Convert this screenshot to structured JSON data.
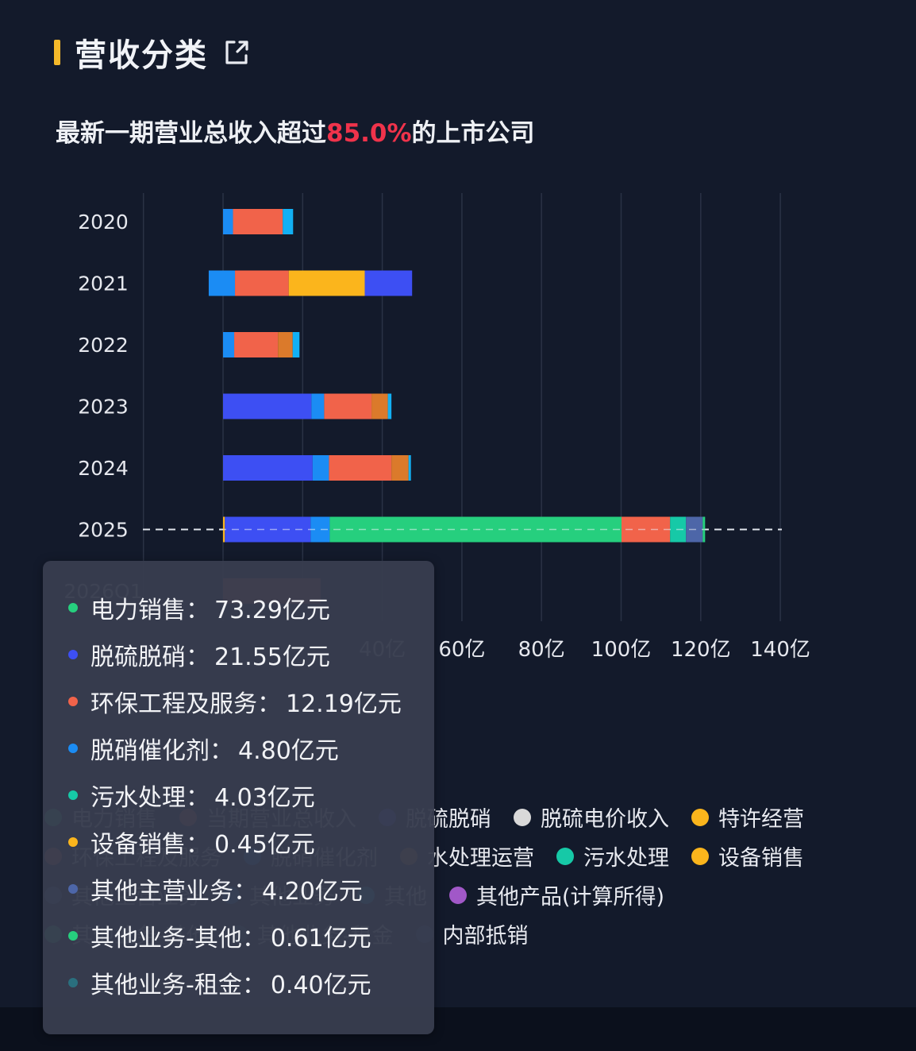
{
  "header": {
    "title": "营收分类",
    "icon": "external-link-icon",
    "accent": "#f5b92a"
  },
  "subtitle": {
    "prefix": "最新一期营业总收入超过",
    "highlight": "85.0%",
    "suffix": "的上市公司",
    "highlight_color": "#f0334b"
  },
  "chart_data": {
    "type": "bar",
    "orientation": "horizontal",
    "stacked": true,
    "categories": [
      "2020",
      "2021",
      "2022",
      "2023",
      "2024",
      "2025",
      "2026Q1"
    ],
    "x_ticks": [
      "40亿",
      "60亿",
      "80亿",
      "100亿",
      "120亿",
      "140亿"
    ],
    "xlim": [
      -20,
      140
    ],
    "x_unit": "亿",
    "highlighted_category": "2025",
    "segment_colors": {
      "blue": "#3d4ff3",
      "lightblue": "#1b8cf4",
      "cyan": "#12b0f4",
      "red": "#f1634a",
      "yellow": "#fbb51c",
      "orange": "#db7a2b",
      "green": "#26cf7e",
      "teal": "#16c9a7",
      "slate": "#4d66a8"
    },
    "bars": [
      {
        "category": "2020",
        "segments": [
          [
            0,
            2.5,
            "lightblue"
          ],
          [
            2.5,
            15,
            "red"
          ],
          [
            15,
            17.6,
            "cyan"
          ]
        ]
      },
      {
        "category": "2021",
        "segments": [
          [
            -3.6,
            3,
            "lightblue"
          ],
          [
            3,
            16.5,
            "red"
          ],
          [
            16.5,
            35.6,
            "yellow"
          ],
          [
            35.6,
            47.5,
            "blue"
          ]
        ]
      },
      {
        "category": "2022",
        "segments": [
          [
            0,
            2.8,
            "lightblue"
          ],
          [
            2.8,
            13.8,
            "red"
          ],
          [
            13.8,
            17.5,
            "orange"
          ],
          [
            17.5,
            19.2,
            "cyan"
          ]
        ]
      },
      {
        "category": "2023",
        "segments": [
          [
            0,
            22.2,
            "blue"
          ],
          [
            22.2,
            25.4,
            "lightblue"
          ],
          [
            25.4,
            37.3,
            "red"
          ],
          [
            37.3,
            41.4,
            "orange"
          ],
          [
            41.4,
            42.3,
            "cyan"
          ]
        ]
      },
      {
        "category": "2024",
        "segments": [
          [
            0,
            22.5,
            "blue"
          ],
          [
            22.5,
            26.6,
            "lightblue"
          ],
          [
            26.6,
            42.3,
            "red"
          ],
          [
            42.3,
            46.6,
            "orange"
          ],
          [
            46.6,
            47.2,
            "cyan"
          ]
        ]
      },
      {
        "category": "2025",
        "segments": [
          [
            0,
            0.45,
            "yellow"
          ],
          [
            0.45,
            22,
            "blue"
          ],
          [
            22,
            26.8,
            "lightblue"
          ],
          [
            26.8,
            100.1,
            "green"
          ],
          [
            100.1,
            112.3,
            "red"
          ],
          [
            112.3,
            116.3,
            "teal"
          ],
          [
            116.3,
            120.5,
            "slate"
          ],
          [
            120.5,
            121.1,
            "green"
          ]
        ]
      },
      {
        "category": "2026Q1",
        "segments": [
          [
            0,
            24.5,
            "red"
          ]
        ]
      }
    ],
    "legend": [
      {
        "label": "电力销售",
        "color": "#26cf7e"
      },
      {
        "label": "当期营业总收入",
        "color": "#f1634a"
      },
      {
        "label": "脱硫脱硝",
        "color": "#3d4ff3"
      },
      {
        "label": "脱硫电价收入",
        "color": "#d9d9d9"
      },
      {
        "label": "特许经营",
        "color": "#fbb51c"
      },
      {
        "label": "环保工程及服务",
        "color": "#f1634a"
      },
      {
        "label": "脱硝催化剂",
        "color": "#1b8cf4"
      },
      {
        "label": "水处理运营",
        "color": "#db7a2b"
      },
      {
        "label": "污水处理",
        "color": "#16c9a7"
      },
      {
        "label": "设备销售",
        "color": "#fbb51c"
      },
      {
        "label": "其他主营业务",
        "color": "#4d66a8"
      },
      {
        "label": "其他业务",
        "color": "#1b8cf4"
      },
      {
        "label": "其他",
        "color": "#12b0f4"
      },
      {
        "label": "其他产品(计算所得)",
        "color": "#a158c8"
      },
      {
        "label": "其他业务-其他",
        "color": "#26cf7e"
      },
      {
        "label": "其他业务-租金",
        "color": "#2a6f7e"
      },
      {
        "label": "内部抵销",
        "color": "#34508a"
      }
    ]
  },
  "tooltip": {
    "unit": "亿元",
    "rows": [
      {
        "label": "电力销售：",
        "value": "73.29亿元",
        "color": "#26cf7e"
      },
      {
        "label": "脱硫脱硝：",
        "value": "21.55亿元",
        "color": "#3d4ff3"
      },
      {
        "label": "环保工程及服务：",
        "value": "12.19亿元",
        "color": "#f1634a"
      },
      {
        "label": "脱硝催化剂：",
        "value": "4.80亿元",
        "color": "#1b8cf4"
      },
      {
        "label": "污水处理：",
        "value": "4.03亿元",
        "color": "#16c9a7"
      },
      {
        "label": "设备销售：",
        "value": "0.45亿元",
        "color": "#fbb51c"
      },
      {
        "label": "其他主营业务：",
        "value": "4.20亿元",
        "color": "#4d66a8"
      },
      {
        "label": "其他业务-其他：",
        "value": "0.61亿元",
        "color": "#26cf7e"
      },
      {
        "label": "其他业务-租金：",
        "value": "0.40亿元",
        "color": "#2a6f7e"
      }
    ]
  }
}
